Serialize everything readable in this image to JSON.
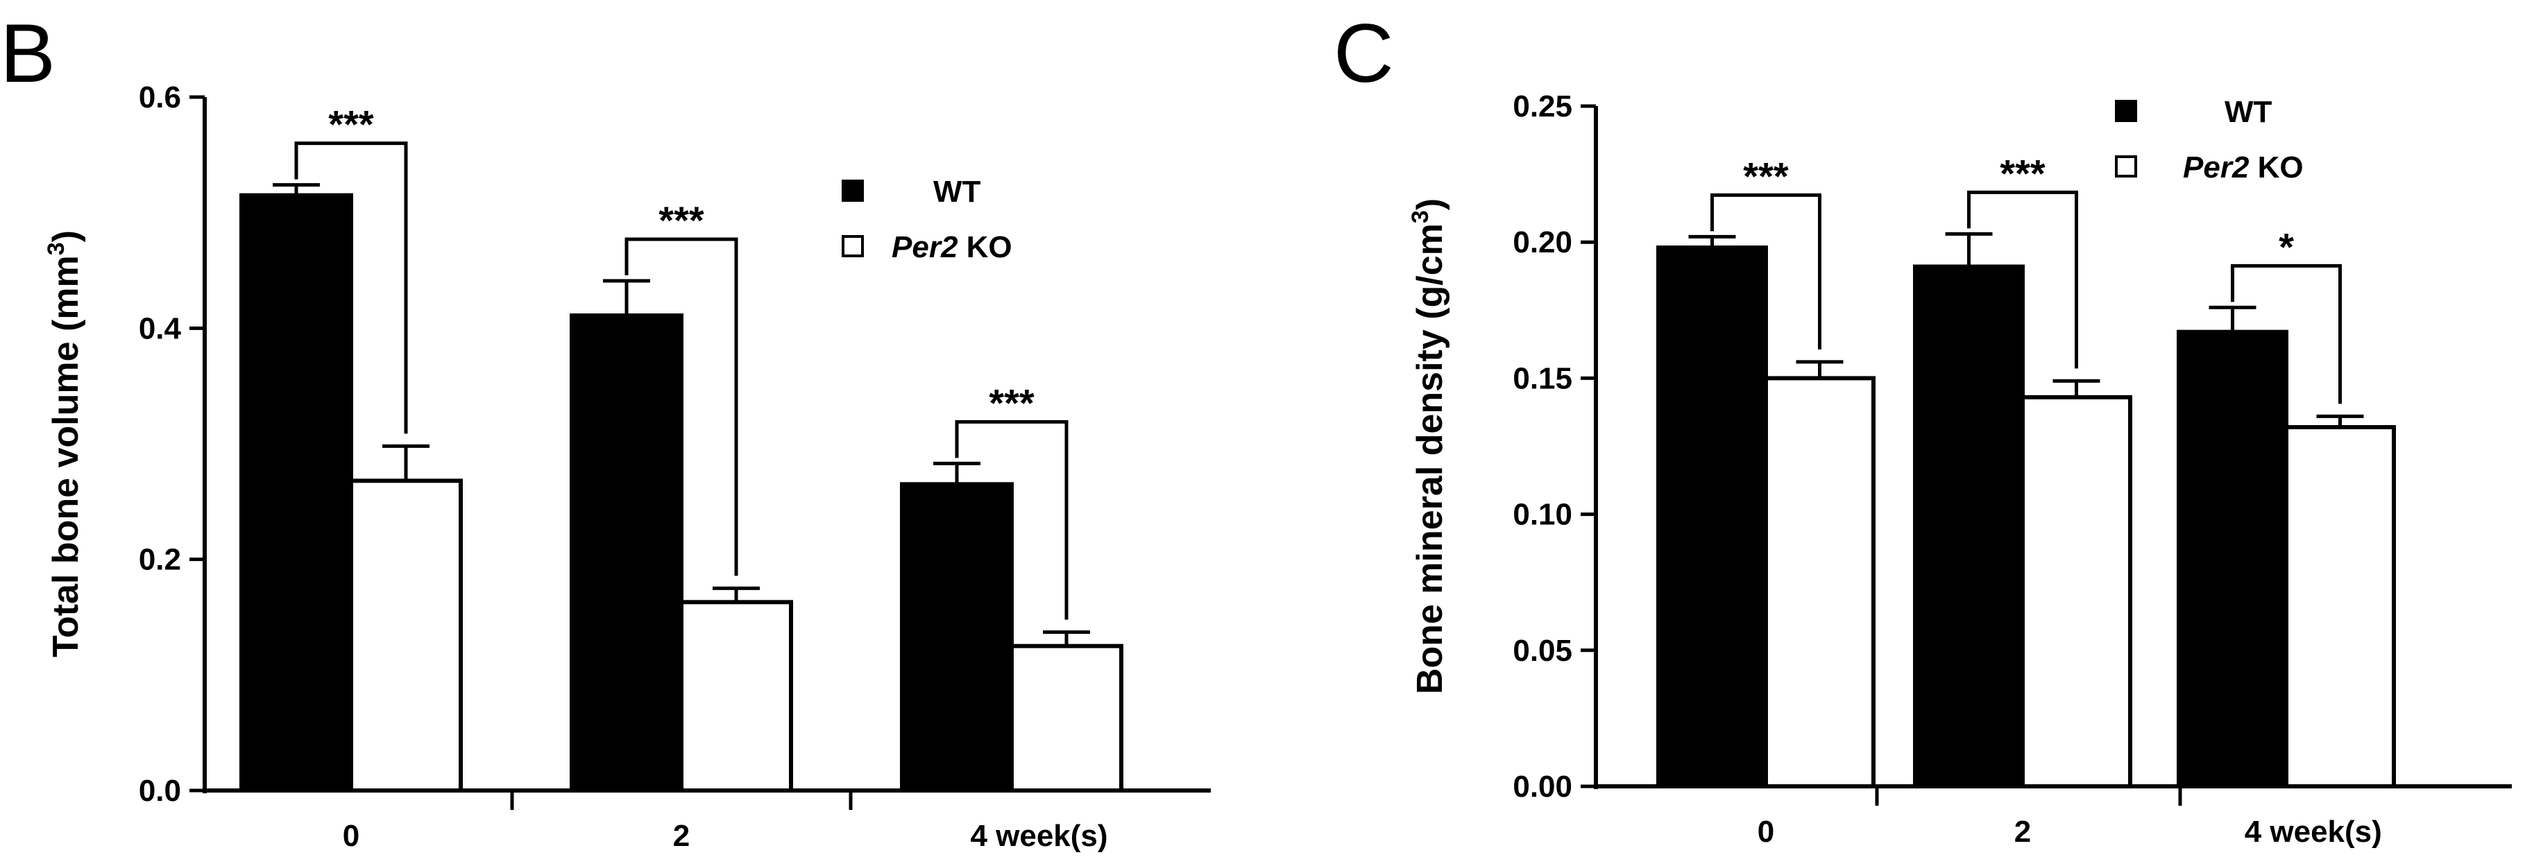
{
  "chart_data": [
    {
      "panel": "B",
      "type": "bar",
      "categories": [
        "0",
        "2",
        "4 week(s)"
      ],
      "series": [
        {
          "name": "WT",
          "name_parts": [
            "",
            "WT"
          ],
          "values": [
            0.515,
            0.411,
            0.265
          ],
          "errors": [
            0.009,
            0.03,
            0.018
          ],
          "fill": "#000000"
        },
        {
          "name": "Per2 KO",
          "name_parts": [
            "Per2",
            " KO"
          ],
          "values": [
            0.268,
            0.163,
            0.125
          ],
          "errors": [
            0.03,
            0.012,
            0.012
          ],
          "fill": "#ffffff"
        }
      ],
      "significance": [
        "***",
        "***",
        "***"
      ],
      "ylabel": "Total bone volume (mm",
      "ylabel_sup": "3",
      "ylabel_close": ")",
      "ylim": [
        0,
        0.6
      ],
      "yticks": [
        "0.0",
        "0.2",
        "0.4",
        "0.6"
      ],
      "legend_position": "top-right"
    },
    {
      "panel": "C",
      "type": "bar",
      "categories": [
        "0",
        "2",
        "4 week(s)"
      ],
      "series": [
        {
          "name": "WT",
          "name_parts": [
            "",
            "WT"
          ],
          "values": [
            0.198,
            0.191,
            0.167
          ],
          "errors": [
            0.004,
            0.012,
            0.009
          ],
          "fill": "#000000"
        },
        {
          "name": "Per2 KO",
          "name_parts": [
            "Per2",
            " KO"
          ],
          "values": [
            0.15,
            0.143,
            0.132
          ],
          "errors": [
            0.006,
            0.006,
            0.004
          ],
          "fill": "#ffffff"
        }
      ],
      "significance": [
        "***",
        "***",
        "*"
      ],
      "ylabel": "Bone mineral density (g/cm",
      "ylabel_sup": "3",
      "ylabel_close": ")",
      "ylim": [
        0,
        0.25
      ],
      "yticks": [
        "0.00",
        "0.05",
        "0.10",
        "0.15",
        "0.20",
        "0.25"
      ],
      "legend_position": "top-right"
    }
  ]
}
